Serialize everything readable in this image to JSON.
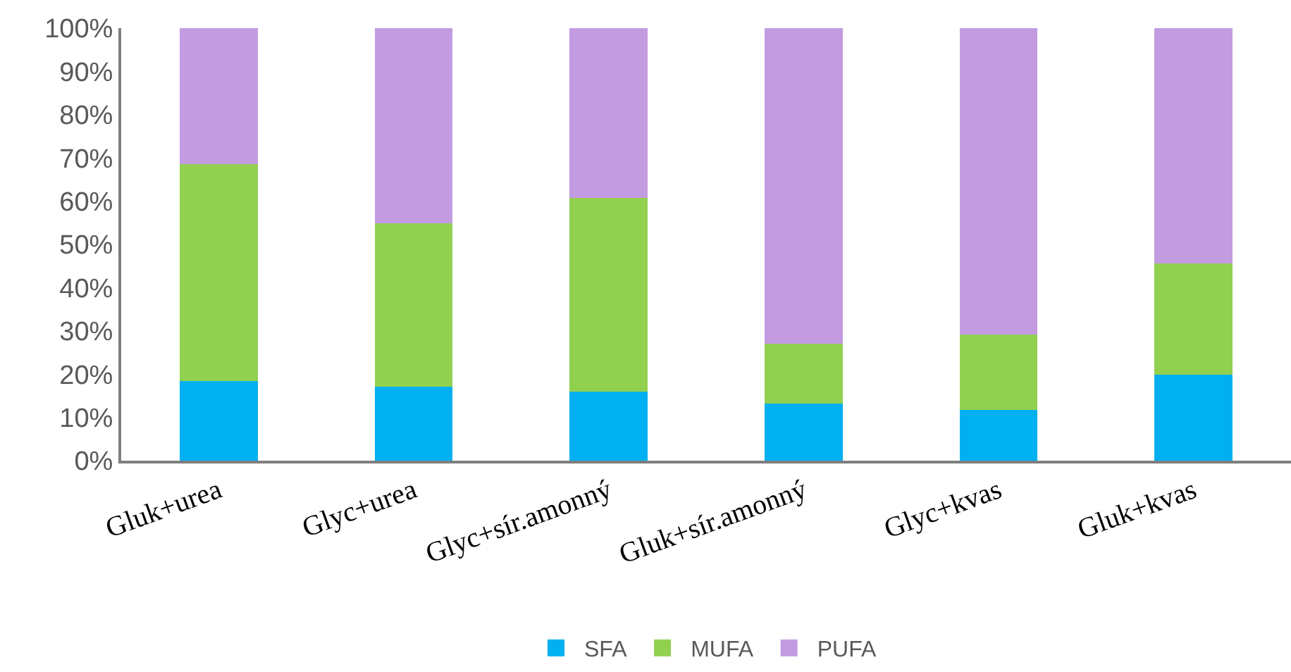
{
  "chart_data": {
    "type": "bar",
    "stacked": true,
    "categories": [
      "Gluk+urea",
      "Glyc+urea",
      "Glyc+sír.amonný",
      "Gluk+sír.amonný",
      "Glyc+kvas",
      "Gluk+kvas"
    ],
    "series": [
      {
        "name": "SFA",
        "color": "#00b0f0",
        "values": [
          18.4,
          17.1,
          16.0,
          13.2,
          11.8,
          19.9
        ]
      },
      {
        "name": "MUFA",
        "color": "#92d050",
        "values": [
          50.2,
          37.8,
          44.7,
          13.8,
          17.4,
          25.7
        ]
      },
      {
        "name": "PUFA",
        "color": "#c39be1",
        "values": [
          31.4,
          45.1,
          39.3,
          73.0,
          70.8,
          54.4
        ]
      }
    ],
    "ylim": [
      0,
      100
    ],
    "yticks": [
      {
        "value": 0,
        "label": "0%"
      },
      {
        "value": 10,
        "label": "10%"
      },
      {
        "value": 20,
        "label": "20%"
      },
      {
        "value": 30,
        "label": "30%"
      },
      {
        "value": 40,
        "label": "40%"
      },
      {
        "value": 50,
        "label": "50%"
      },
      {
        "value": 60,
        "label": "60%"
      },
      {
        "value": 70,
        "label": "70%"
      },
      {
        "value": 80,
        "label": "80%"
      },
      {
        "value": 90,
        "label": "90%"
      },
      {
        "value": 100,
        "label": "100%"
      }
    ],
    "grid": false,
    "legend": "bottom"
  }
}
